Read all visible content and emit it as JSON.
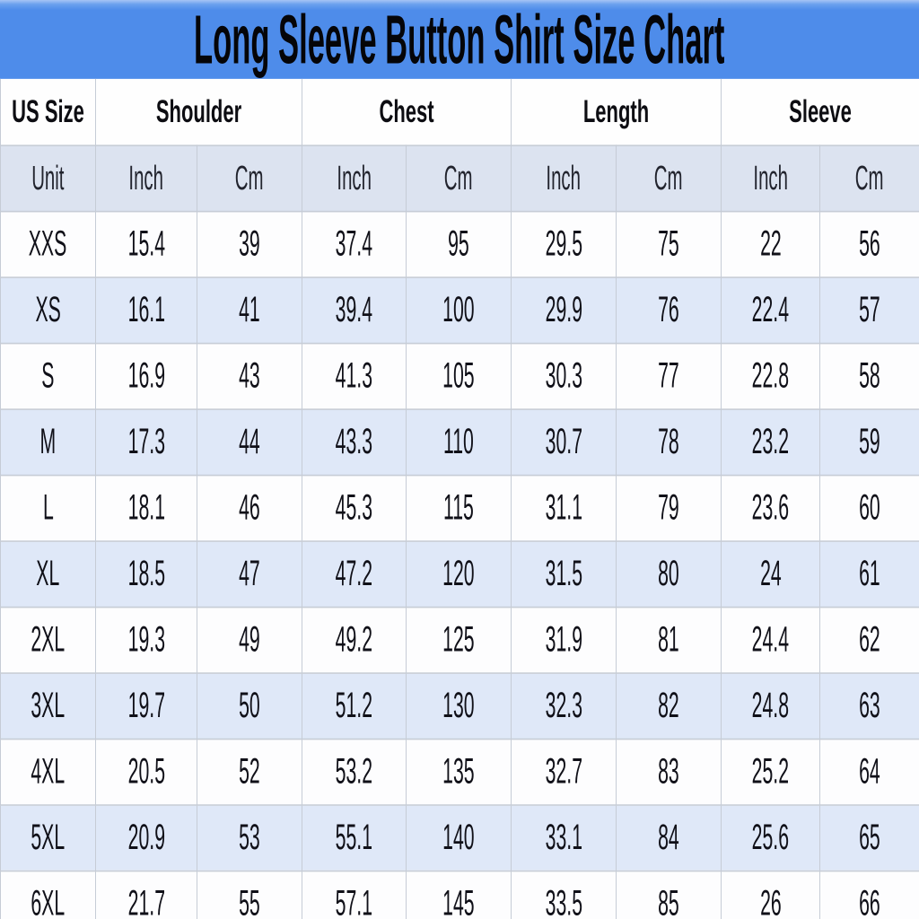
{
  "banner": {
    "title": "Long Sleeve Button Shirt Size Chart"
  },
  "colors": {
    "banner_blue": "#4e8cea",
    "header_row_bg": "#fefefe",
    "unit_row_bg": "#dce3f0",
    "alt_row_bg": "#dfe8f8",
    "grid_line": "#c6ccd6",
    "title_text": "#050508"
  },
  "chart_data": {
    "type": "table",
    "title": "Long Sleeve Button Shirt Size Chart",
    "column_groups": [
      {
        "label": "US Size",
        "span": 1
      },
      {
        "label": "Shoulder",
        "span": 2
      },
      {
        "label": "Chest",
        "span": 2
      },
      {
        "label": "Length",
        "span": 2
      },
      {
        "label": "Sleeve",
        "span": 2
      }
    ],
    "unit_row": [
      "Unit",
      "Inch",
      "Cm",
      "Inch",
      "Cm",
      "Inch",
      "Cm",
      "Inch",
      "Cm"
    ],
    "rows": [
      [
        "XXS",
        "15.4",
        "39",
        "37.4",
        "95",
        "29.5",
        "75",
        "22",
        "56"
      ],
      [
        "XS",
        "16.1",
        "41",
        "39.4",
        "100",
        "29.9",
        "76",
        "22.4",
        "57"
      ],
      [
        "S",
        "16.9",
        "43",
        "41.3",
        "105",
        "30.3",
        "77",
        "22.8",
        "58"
      ],
      [
        "M",
        "17.3",
        "44",
        "43.3",
        "110",
        "30.7",
        "78",
        "23.2",
        "59"
      ],
      [
        "L",
        "18.1",
        "46",
        "45.3",
        "115",
        "31.1",
        "79",
        "23.6",
        "60"
      ],
      [
        "XL",
        "18.5",
        "47",
        "47.2",
        "120",
        "31.5",
        "80",
        "24",
        "61"
      ],
      [
        "2XL",
        "19.3",
        "49",
        "49.2",
        "125",
        "31.9",
        "81",
        "24.4",
        "62"
      ],
      [
        "3XL",
        "19.7",
        "50",
        "51.2",
        "130",
        "32.3",
        "82",
        "24.8",
        "63"
      ],
      [
        "4XL",
        "20.5",
        "52",
        "53.2",
        "135",
        "32.7",
        "83",
        "25.2",
        "64"
      ],
      [
        "5XL",
        "20.9",
        "53",
        "55.1",
        "140",
        "33.1",
        "84",
        "25.6",
        "65"
      ],
      [
        "6XL",
        "21.7",
        "55",
        "57.1",
        "145",
        "33.5",
        "85",
        "26",
        "66"
      ]
    ]
  }
}
